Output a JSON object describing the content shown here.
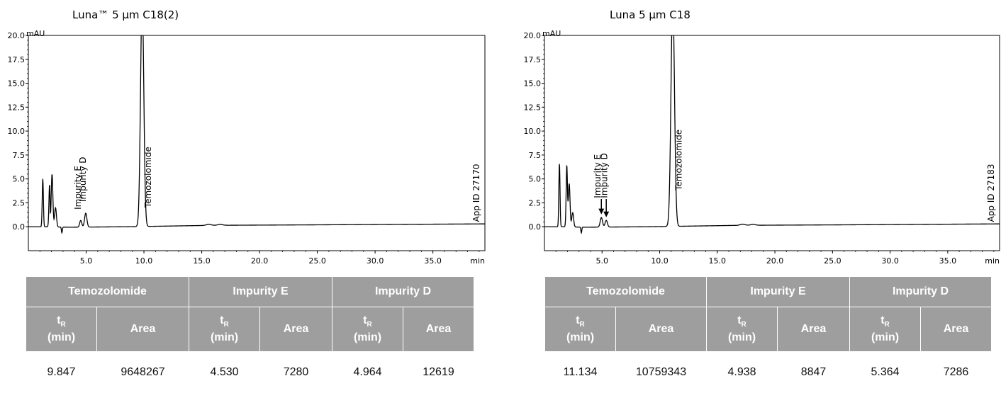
{
  "chart_data": [
    {
      "type": "line",
      "title": "Luna™ 5 µm C18(2)",
      "ylabel": "mAU",
      "xlabel": "min",
      "app_id": "App ID 27170",
      "xlim": [
        0,
        39.5
      ],
      "ylim": [
        -2.5,
        20
      ],
      "x_ticks": [
        "5.0",
        "10.0",
        "15.0",
        "20.0",
        "25.0",
        "30.0",
        "35.0"
      ],
      "x_tick_values": [
        5,
        10,
        15,
        20,
        25,
        30,
        35
      ],
      "y_ticks": [
        "0.0",
        "2.5",
        "5.0",
        "7.5",
        "10.0",
        "12.5",
        "15.0",
        "17.5",
        "20.0"
      ],
      "y_tick_values": [
        0,
        2.5,
        5,
        7.5,
        10,
        12.5,
        15,
        17.5,
        20
      ],
      "baseline": [
        [
          0,
          0
        ],
        [
          0.75,
          0
        ],
        [
          1.3,
          0
        ],
        [
          3.5,
          -0.05
        ],
        [
          8.5,
          0
        ],
        [
          16,
          0.15
        ],
        [
          25,
          0.2
        ],
        [
          39.5,
          0.3
        ]
      ],
      "peaks": [
        {
          "x": 1.25,
          "height": 5.0,
          "width": 0.05
        },
        {
          "x": 1.85,
          "height": 5.2,
          "width": 0.06
        },
        {
          "x": 2.05,
          "height": 5.5,
          "width": 0.07
        },
        {
          "x": 2.35,
          "height": 2.0,
          "width": 0.08
        },
        {
          "x": 4.53,
          "height": 0.7,
          "width": 0.09
        },
        {
          "x": 4.964,
          "height": 1.45,
          "width": 0.1
        },
        {
          "x": 9.847,
          "height": 24,
          "width": 0.14
        },
        {
          "x": 15.6,
          "height": 0.12,
          "width": 0.2
        },
        {
          "x": 16.6,
          "height": 0.1,
          "width": 0.2
        }
      ],
      "dips": [
        {
          "x": 1.9,
          "depth": 2.5
        },
        {
          "x": 2.9,
          "depth": 0.6
        }
      ],
      "annotations": [
        {
          "text": "Impurity E",
          "x": 4.53,
          "y": 1.8
        },
        {
          "text": "Impurity D",
          "x": 4.964,
          "y": 2.6
        },
        {
          "text": "Temozolomide",
          "x": 10.6,
          "y": 2.0
        }
      ],
      "arrows": [],
      "table": {
        "groups": [
          "Temozolomide",
          "Impurity E",
          "Impurity D"
        ],
        "sub_t": "t",
        "sub_r": "R",
        "sub_min": "(min)",
        "sub_area": "Area",
        "values": [
          "9.847",
          "9648267",
          "4.530",
          "7280",
          "4.964",
          "12619"
        ]
      }
    },
    {
      "type": "line",
      "title": "Luna 5 µm C18",
      "ylabel": "mAU",
      "xlabel": "min",
      "app_id": "App ID 27183",
      "xlim": [
        0,
        39.5
      ],
      "ylim": [
        -2.5,
        20
      ],
      "x_ticks": [
        "5.0",
        "10.0",
        "15.0",
        "20.0",
        "25.0",
        "30.0",
        "35.0"
      ],
      "x_tick_values": [
        5,
        10,
        15,
        20,
        25,
        30,
        35
      ],
      "y_ticks": [
        "0.0",
        "2.5",
        "5.0",
        "7.5",
        "10.0",
        "12.5",
        "15.0",
        "17.5",
        "20.0"
      ],
      "y_tick_values": [
        0,
        2.5,
        5,
        7.5,
        10,
        12.5,
        15,
        17.5,
        20
      ],
      "baseline": [
        [
          0,
          0
        ],
        [
          0.8,
          0
        ],
        [
          1.5,
          0
        ],
        [
          3.5,
          -0.05
        ],
        [
          9,
          0
        ],
        [
          17,
          0.15
        ],
        [
          26,
          0.2
        ],
        [
          39.5,
          0.3
        ]
      ],
      "peaks": [
        {
          "x": 1.3,
          "height": 6.6,
          "width": 0.05
        },
        {
          "x": 1.95,
          "height": 7.0,
          "width": 0.06
        },
        {
          "x": 2.15,
          "height": 4.5,
          "width": 0.07
        },
        {
          "x": 2.45,
          "height": 1.5,
          "width": 0.08
        },
        {
          "x": 4.938,
          "height": 1.0,
          "width": 0.1
        },
        {
          "x": 5.364,
          "height": 0.7,
          "width": 0.1
        },
        {
          "x": 11.134,
          "height": 24,
          "width": 0.15
        },
        {
          "x": 17.2,
          "height": 0.12,
          "width": 0.2
        },
        {
          "x": 18.1,
          "height": 0.1,
          "width": 0.2
        }
      ],
      "dips": [
        {
          "x": 2.0,
          "depth": 1.5
        },
        {
          "x": 3.2,
          "depth": 0.6
        }
      ],
      "annotations": [
        {
          "text": "Impurity E",
          "x": 4.85,
          "y": 3.0
        },
        {
          "text": "Impurity D",
          "x": 5.45,
          "y": 3.0
        },
        {
          "text": "Temozolomide",
          "x": 11.9,
          "y": 3.8
        }
      ],
      "arrows": [
        {
          "x": 4.938,
          "from": 2.9,
          "to": 1.3
        },
        {
          "x": 5.364,
          "from": 2.9,
          "to": 1.0
        }
      ],
      "table": {
        "groups": [
          "Temozolomide",
          "Impurity E",
          "Impurity D"
        ],
        "sub_t": "t",
        "sub_r": "R",
        "sub_min": "(min)",
        "sub_area": "Area",
        "values": [
          "11.134",
          "10759343",
          "4.938",
          "8847",
          "5.364",
          "7286"
        ]
      }
    }
  ]
}
